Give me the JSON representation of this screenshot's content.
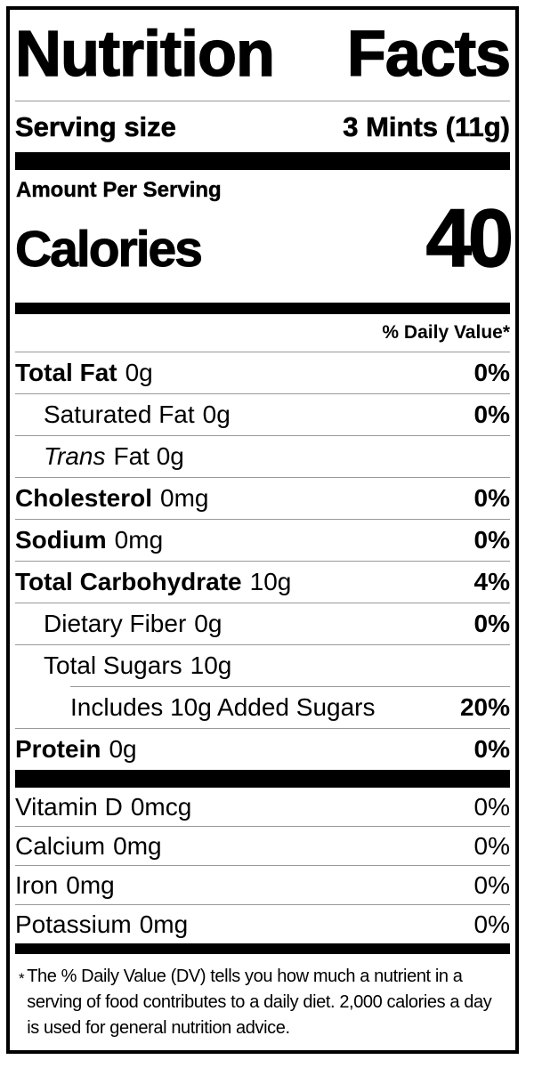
{
  "header": {
    "title": "Nutrition Facts"
  },
  "serving": {
    "label": "Serving size",
    "value": "3 Mints (11g)"
  },
  "calories": {
    "section_label": "Amount Per Serving",
    "label": "Calories",
    "value": "40"
  },
  "daily_value": {
    "header": "% Daily Value*"
  },
  "nutrients": [
    {
      "name": "Total Fat",
      "amount": "0g",
      "dv": "0%",
      "bold": true,
      "italic": false,
      "indent": 0,
      "divider_indent": false
    },
    {
      "name": "Saturated Fat",
      "amount": "0g",
      "dv": "0%",
      "bold": false,
      "italic": false,
      "indent": 1,
      "divider_indent": false
    },
    {
      "name": "Trans",
      "amount": "Fat 0g",
      "dv": "",
      "bold": false,
      "italic": true,
      "indent": 1,
      "divider_indent": false
    },
    {
      "name": "Cholesterol",
      "amount": "0mg",
      "dv": "0%",
      "bold": true,
      "italic": false,
      "indent": 0,
      "divider_indent": false
    },
    {
      "name": "Sodium",
      "amount": "0mg",
      "dv": "0%",
      "bold": true,
      "italic": false,
      "indent": 0,
      "divider_indent": false
    },
    {
      "name": "Total Carbohydrate",
      "amount": "10g",
      "dv": "4%",
      "bold": true,
      "italic": false,
      "indent": 0,
      "divider_indent": false
    },
    {
      "name": "Dietary Fiber",
      "amount": "0g",
      "dv": "0%",
      "bold": false,
      "italic": false,
      "indent": 1,
      "divider_indent": false
    },
    {
      "name": "Total Sugars",
      "amount": "10g",
      "dv": "",
      "bold": false,
      "italic": false,
      "indent": 1,
      "divider_indent": false
    },
    {
      "name": "Includes 10g Added Sugars",
      "amount": "",
      "dv": "20%",
      "bold": false,
      "italic": false,
      "indent": 2,
      "divider_indent": true
    },
    {
      "name": "Protein",
      "amount": "0g",
      "dv": "0%",
      "bold": true,
      "italic": false,
      "indent": 0,
      "divider_indent": false
    }
  ],
  "micronutrients": [
    {
      "name": "Vitamin D",
      "amount": "0mcg",
      "dv": "0%"
    },
    {
      "name": "Calcium",
      "amount": "0mg",
      "dv": "0%"
    },
    {
      "name": "Iron",
      "amount": "0mg",
      "dv": "0%"
    },
    {
      "name": "Potassium",
      "amount": "0mg",
      "dv": "0%"
    }
  ],
  "footnote": {
    "marker": "*",
    "text": "The % Daily Value (DV) tells you how much a nutrient in a serving of food contributes to a daily diet. 2,000 calories a day is used for general nutrition advice."
  },
  "colors": {
    "ink": "#000000",
    "divider": "#999999",
    "background": "#ffffff"
  }
}
